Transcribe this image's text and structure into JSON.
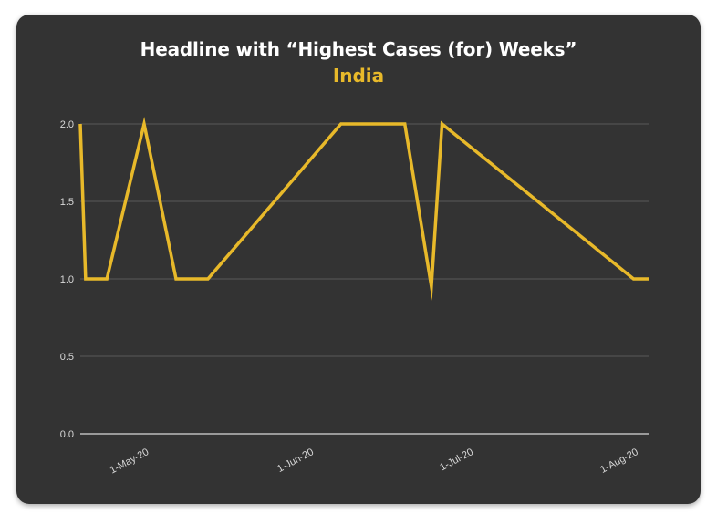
{
  "chart_data": {
    "type": "line",
    "title": "Headline with “Highest Cases (for) Weeks”",
    "subtitle": "India",
    "xlabel": "",
    "ylabel": "",
    "x_tick_labels": [
      {
        "date": "2020-05-01",
        "label": "1-May-20"
      },
      {
        "date": "2020-06-01",
        "label": "1-Jun-20"
      },
      {
        "date": "2020-07-01",
        "label": "1-Jul-20"
      },
      {
        "date": "2020-08-01",
        "label": "1-Aug-20"
      }
    ],
    "y_ticks": [
      0.0,
      0.5,
      1.0,
      1.5,
      2.0
    ],
    "y_tick_labels": [
      "0.0",
      "0.5",
      "1.0",
      "1.5",
      "2.0"
    ],
    "ylim": [
      0,
      2
    ],
    "xlim": [
      "2020-04-18",
      "2020-08-03"
    ],
    "grid": true,
    "legend": "none",
    "series": [
      {
        "color": "#e8b92a",
        "x": [
          "2020-04-18",
          "2020-04-19",
          "2020-04-23",
          "2020-04-30",
          "2020-05-06",
          "2020-05-12",
          "2020-06-06",
          "2020-06-18",
          "2020-06-23",
          "2020-06-25",
          "2020-07-31",
          "2020-08-03"
        ],
        "y": [
          2,
          1,
          1,
          2,
          1,
          1,
          2,
          2,
          0.95,
          2,
          1,
          1
        ]
      }
    ]
  },
  "colors": {
    "background": "#333333",
    "accent": "#e8b92a",
    "grid": "#5a5a5a",
    "axis": "#bdbdbd"
  }
}
